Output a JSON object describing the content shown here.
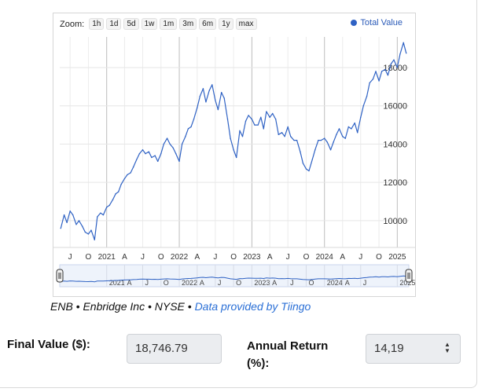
{
  "zoom": {
    "label": "Zoom:",
    "buttons": [
      "1h",
      "1d",
      "5d",
      "1w",
      "1m",
      "3m",
      "6m",
      "1y",
      "max"
    ]
  },
  "legend": {
    "label": "Total Value",
    "color": "#2f62c4"
  },
  "chart_data": {
    "type": "line",
    "series": [
      {
        "name": "Total Value",
        "x": [
          "2020-05-15",
          "2020-06-01",
          "2020-06-15",
          "2020-07-01",
          "2020-07-15",
          "2020-08-01",
          "2020-08-15",
          "2020-09-01",
          "2020-09-15",
          "2020-10-01",
          "2020-10-15",
          "2020-11-01",
          "2020-11-15",
          "2020-12-01",
          "2020-12-15",
          "2021-01-01",
          "2021-01-15",
          "2021-02-01",
          "2021-02-15",
          "2021-03-01",
          "2021-03-15",
          "2021-04-01",
          "2021-04-15",
          "2021-05-01",
          "2021-05-15",
          "2021-06-01",
          "2021-06-15",
          "2021-07-01",
          "2021-07-15",
          "2021-08-01",
          "2021-08-15",
          "2021-09-01",
          "2021-09-15",
          "2021-10-01",
          "2021-10-15",
          "2021-11-01",
          "2021-11-15",
          "2021-12-01",
          "2021-12-15",
          "2022-01-01",
          "2022-01-15",
          "2022-02-01",
          "2022-02-15",
          "2022-03-01",
          "2022-03-15",
          "2022-04-01",
          "2022-04-15",
          "2022-05-01",
          "2022-05-15",
          "2022-06-01",
          "2022-06-15",
          "2022-07-01",
          "2022-07-15",
          "2022-08-01",
          "2022-08-15",
          "2022-09-01",
          "2022-09-15",
          "2022-10-01",
          "2022-10-15",
          "2022-11-01",
          "2022-11-15",
          "2022-12-01",
          "2022-12-15",
          "2023-01-01",
          "2023-01-15",
          "2023-02-01",
          "2023-02-15",
          "2023-03-01",
          "2023-03-15",
          "2023-04-01",
          "2023-04-15",
          "2023-05-01",
          "2023-05-15",
          "2023-06-01",
          "2023-06-15",
          "2023-07-01",
          "2023-07-15",
          "2023-08-01",
          "2023-08-15",
          "2023-09-01",
          "2023-09-15",
          "2023-10-01",
          "2023-10-15",
          "2023-11-01",
          "2023-11-15",
          "2023-12-01",
          "2023-12-15",
          "2024-01-01",
          "2024-01-15",
          "2024-02-01",
          "2024-02-15",
          "2024-03-01",
          "2024-03-15",
          "2024-04-01",
          "2024-04-15",
          "2024-05-01",
          "2024-05-15",
          "2024-06-01",
          "2024-06-15",
          "2024-07-01",
          "2024-07-15",
          "2024-08-01",
          "2024-08-15",
          "2024-09-01",
          "2024-09-15",
          "2024-10-01",
          "2024-10-15",
          "2024-11-01",
          "2024-11-15",
          "2024-12-01",
          "2024-12-15",
          "2025-01-01",
          "2025-01-15",
          "2025-02-01",
          "2025-02-15"
        ],
        "values": [
          9600,
          10300,
          9900,
          10500,
          10300,
          9800,
          10000,
          9700,
          9400,
          9300,
          9500,
          9000,
          10200,
          10400,
          10300,
          10700,
          10800,
          11100,
          11400,
          11500,
          11900,
          12200,
          12400,
          12500,
          12800,
          13200,
          13500,
          13700,
          13500,
          13600,
          13300,
          13400,
          13100,
          13500,
          14000,
          14300,
          14000,
          13800,
          13500,
          13100,
          14000,
          14400,
          14800,
          14900,
          15300,
          15900,
          16500,
          16900,
          16200,
          16800,
          17100,
          16300,
          15800,
          16700,
          16400,
          15300,
          14300,
          13700,
          13300,
          14700,
          14400,
          15200,
          15500,
          15300,
          15000,
          15000,
          15400,
          14800,
          15700,
          15400,
          15600,
          15300,
          14500,
          14600,
          14400,
          14900,
          14400,
          14200,
          14200,
          13600,
          13000,
          12700,
          12600,
          13200,
          13700,
          14200,
          14200,
          14300,
          14100,
          13700,
          14100,
          14500,
          14800,
          14400,
          14300,
          14900,
          14800,
          15100,
          14600,
          15400,
          16000,
          16500,
          17200,
          17400,
          17800,
          17300,
          17800,
          17900,
          17600,
          18200,
          18400,
          18000,
          18700,
          19300,
          18750
        ]
      }
    ],
    "title": "",
    "xlabel": "",
    "ylabel": "",
    "xlim": [
      "2020-05-10",
      "2025-02-28"
    ],
    "ylim": [
      8600,
      19600
    ],
    "yticks": [
      10000,
      12000,
      14000,
      16000,
      18000
    ],
    "ytick_labels": [
      "10000",
      "12000",
      "14000",
      "16000",
      "18000"
    ],
    "xticks": [
      {
        "date": "2020-07-01",
        "label": "J"
      },
      {
        "date": "2020-10-01",
        "label": "O"
      },
      {
        "date": "2021-01-01",
        "label": "2021"
      },
      {
        "date": "2021-04-01",
        "label": "A"
      },
      {
        "date": "2021-07-01",
        "label": "J"
      },
      {
        "date": "2021-10-01",
        "label": "O"
      },
      {
        "date": "2022-01-01",
        "label": "2022"
      },
      {
        "date": "2022-04-01",
        "label": "A"
      },
      {
        "date": "2022-07-01",
        "label": "J"
      },
      {
        "date": "2022-10-01",
        "label": "O"
      },
      {
        "date": "2023-01-01",
        "label": "2023"
      },
      {
        "date": "2023-04-01",
        "label": "A"
      },
      {
        "date": "2023-07-01",
        "label": "J"
      },
      {
        "date": "2023-10-01",
        "label": "O"
      },
      {
        "date": "2024-01-01",
        "label": "2024"
      },
      {
        "date": "2024-04-01",
        "label": "A"
      },
      {
        "date": "2024-07-01",
        "label": "J"
      },
      {
        "date": "2024-10-01",
        "label": "O"
      },
      {
        "date": "2025-01-01",
        "label": "2025"
      }
    ],
    "navigator_ticks": [
      {
        "date": "2021-01-01",
        "label": "2021"
      },
      {
        "date": "2021-04-01",
        "label": "A"
      },
      {
        "date": "2021-07-01",
        "label": "J"
      },
      {
        "date": "2021-10-01",
        "label": "O"
      },
      {
        "date": "2022-01-01",
        "label": "2022"
      },
      {
        "date": "2022-04-01",
        "label": "A"
      },
      {
        "date": "2022-07-01",
        "label": "J"
      },
      {
        "date": "2022-10-01",
        "label": "O"
      },
      {
        "date": "2023-01-01",
        "label": "2023"
      },
      {
        "date": "2023-04-01",
        "label": "A"
      },
      {
        "date": "2023-07-01",
        "label": "J"
      },
      {
        "date": "2023-10-01",
        "label": "O"
      },
      {
        "date": "2024-01-01",
        "label": "2024"
      },
      {
        "date": "2024-04-01",
        "label": "A"
      },
      {
        "date": "2024-07-01",
        "label": "J"
      },
      {
        "date": "2025-01-01",
        "label": "2025"
      }
    ],
    "grid": true,
    "legend_position": "top-right"
  },
  "source": {
    "text": "ENB • Enbridge Inc • NYSE • ",
    "link": "Data provided by Tiingo"
  },
  "results": {
    "final_label": "Final Value ($):",
    "final_value": "18,746.79",
    "annual_label": "Annual Return (%):",
    "annual_value": "14,19"
  }
}
